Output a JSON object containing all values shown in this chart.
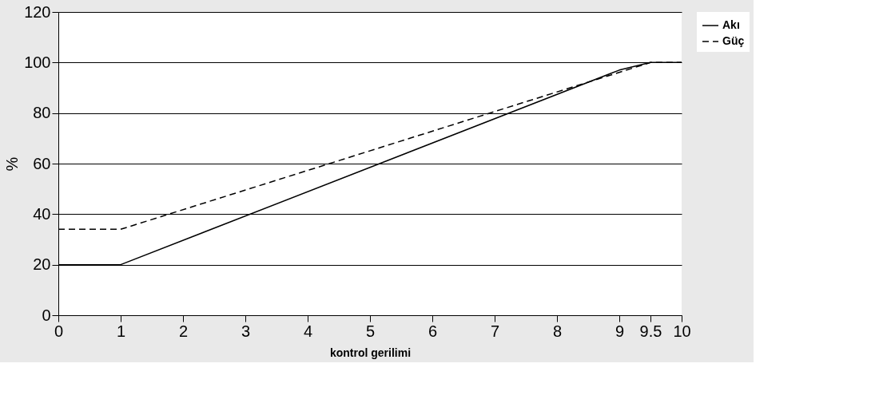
{
  "chart_data": {
    "type": "line",
    "xlabel": "kontrol gerilimi",
    "ylabel": "%",
    "xlim": [
      0,
      10
    ],
    "xticks": [
      0,
      1,
      2,
      3,
      4,
      5,
      6,
      7,
      8,
      9,
      9.5,
      10
    ],
    "ylim": [
      0,
      120
    ],
    "yticks": [
      0,
      20,
      40,
      60,
      80,
      100,
      120
    ],
    "grid": "y",
    "legend": "right",
    "series": [
      {
        "name": "Akı",
        "color": "#000000",
        "line_style": "solid",
        "x": [
          0,
          1,
          9,
          9.5,
          10
        ],
        "values": [
          20,
          20,
          97,
          100,
          100
        ]
      },
      {
        "name": "Güç",
        "color": "#000000",
        "line_style": "dashed",
        "x": [
          0,
          1,
          9.5,
          10
        ],
        "values": [
          34,
          34,
          100,
          100
        ]
      }
    ]
  }
}
